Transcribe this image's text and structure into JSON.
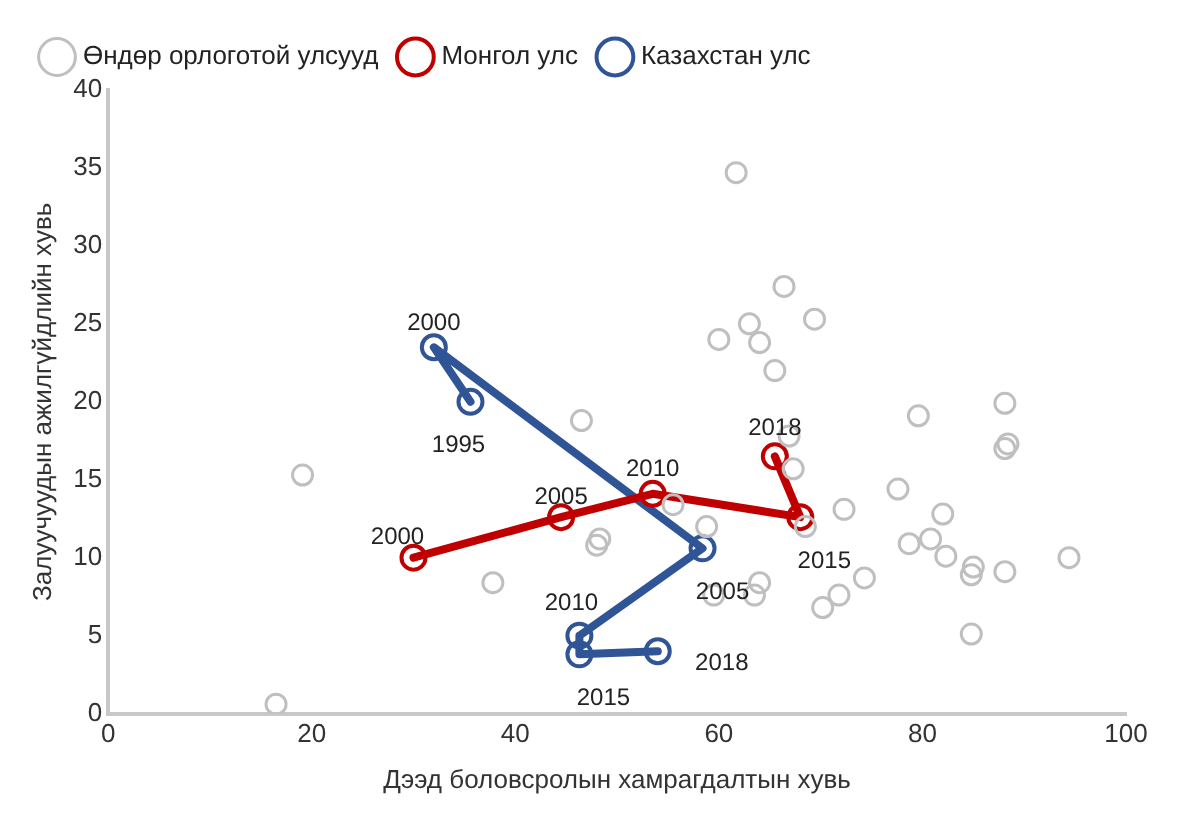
{
  "chart_data": {
    "type": "scatter",
    "xlabel": "Дээд боловсролын хамрагдалтын хувь",
    "ylabel": "Залуучуудын ажилгүйдлийн хувь",
    "xlim": [
      0,
      100
    ],
    "xticks": [
      0,
      20,
      40,
      60,
      80,
      100
    ],
    "ylim": [
      0,
      40
    ],
    "yticks": [
      0,
      5,
      10,
      15,
      20,
      25,
      30,
      35,
      40
    ],
    "grid": false,
    "legend": "top",
    "marker": "circle",
    "series": [
      {
        "name": "Өндөр орлоготой улсууд",
        "type": "scatter",
        "color": "#bfbfbf",
        "x": [
          16.5,
          19.1,
          37.8,
          46.5,
          48,
          48.3,
          55.5,
          58.8,
          59.5,
          63.5,
          64,
          61.7,
          66.4,
          60,
          63,
          64,
          69.4,
          65.5,
          66.9,
          67.3,
          68.5,
          70.2,
          71.8,
          72.3,
          74.3,
          77.6,
          79.6,
          78.7,
          80.8,
          82,
          82.3,
          85,
          84.8,
          84.8,
          88.1,
          88.1,
          88.1,
          88.4,
          94.4
        ],
        "values": [
          0.6,
          15.3,
          8.4,
          18.8,
          10.8,
          11.2,
          13.4,
          12,
          7.6,
          7.6,
          8.4,
          34.7,
          27.4,
          24,
          25,
          23.8,
          25.3,
          22,
          17.8,
          15.7,
          12,
          6.8,
          7.6,
          13.1,
          8.7,
          14.4,
          19.1,
          10.9,
          11.2,
          12.8,
          10.1,
          9.4,
          8.9,
          5.1,
          9.1,
          19.9,
          17,
          17.3,
          10
        ]
      },
      {
        "name": "Монгол улс",
        "type": "line",
        "color": "#c00000",
        "x": [
          30,
          44.5,
          53.5,
          68,
          65.5
        ],
        "values": [
          10,
          12.6,
          14.1,
          12.6,
          16.5
        ]
      },
      {
        "name": "Казахстан улс",
        "type": "line",
        "color": "#2f5597",
        "x": [
          35.6,
          32,
          58.4,
          46.3,
          46.3,
          54
        ],
        "values": [
          20,
          23.5,
          10.6,
          5,
          3.8,
          4
        ]
      }
    ],
    "annotations": [
      {
        "text": "2000",
        "x": 30,
        "y": 10
      },
      {
        "text": "2005",
        "x": 44.5,
        "y": 12.6
      },
      {
        "text": "2010",
        "x": 53.5,
        "y": 14.1
      },
      {
        "text": "2015",
        "x": 68,
        "y": 12.6
      },
      {
        "text": "2018",
        "x": 65.5,
        "y": 16.5
      },
      {
        "text": "1995",
        "x": 35.6,
        "y": 20
      },
      {
        "text": "2000",
        "x": 32,
        "y": 23.5
      },
      {
        "text": "2005",
        "x": 58.4,
        "y": 10.6
      },
      {
        "text": "2010",
        "x": 46.3,
        "y": 5
      },
      {
        "text": "2015",
        "x": 46.3,
        "y": 3.8
      },
      {
        "text": "2018",
        "x": 54,
        "y": 4
      }
    ]
  }
}
